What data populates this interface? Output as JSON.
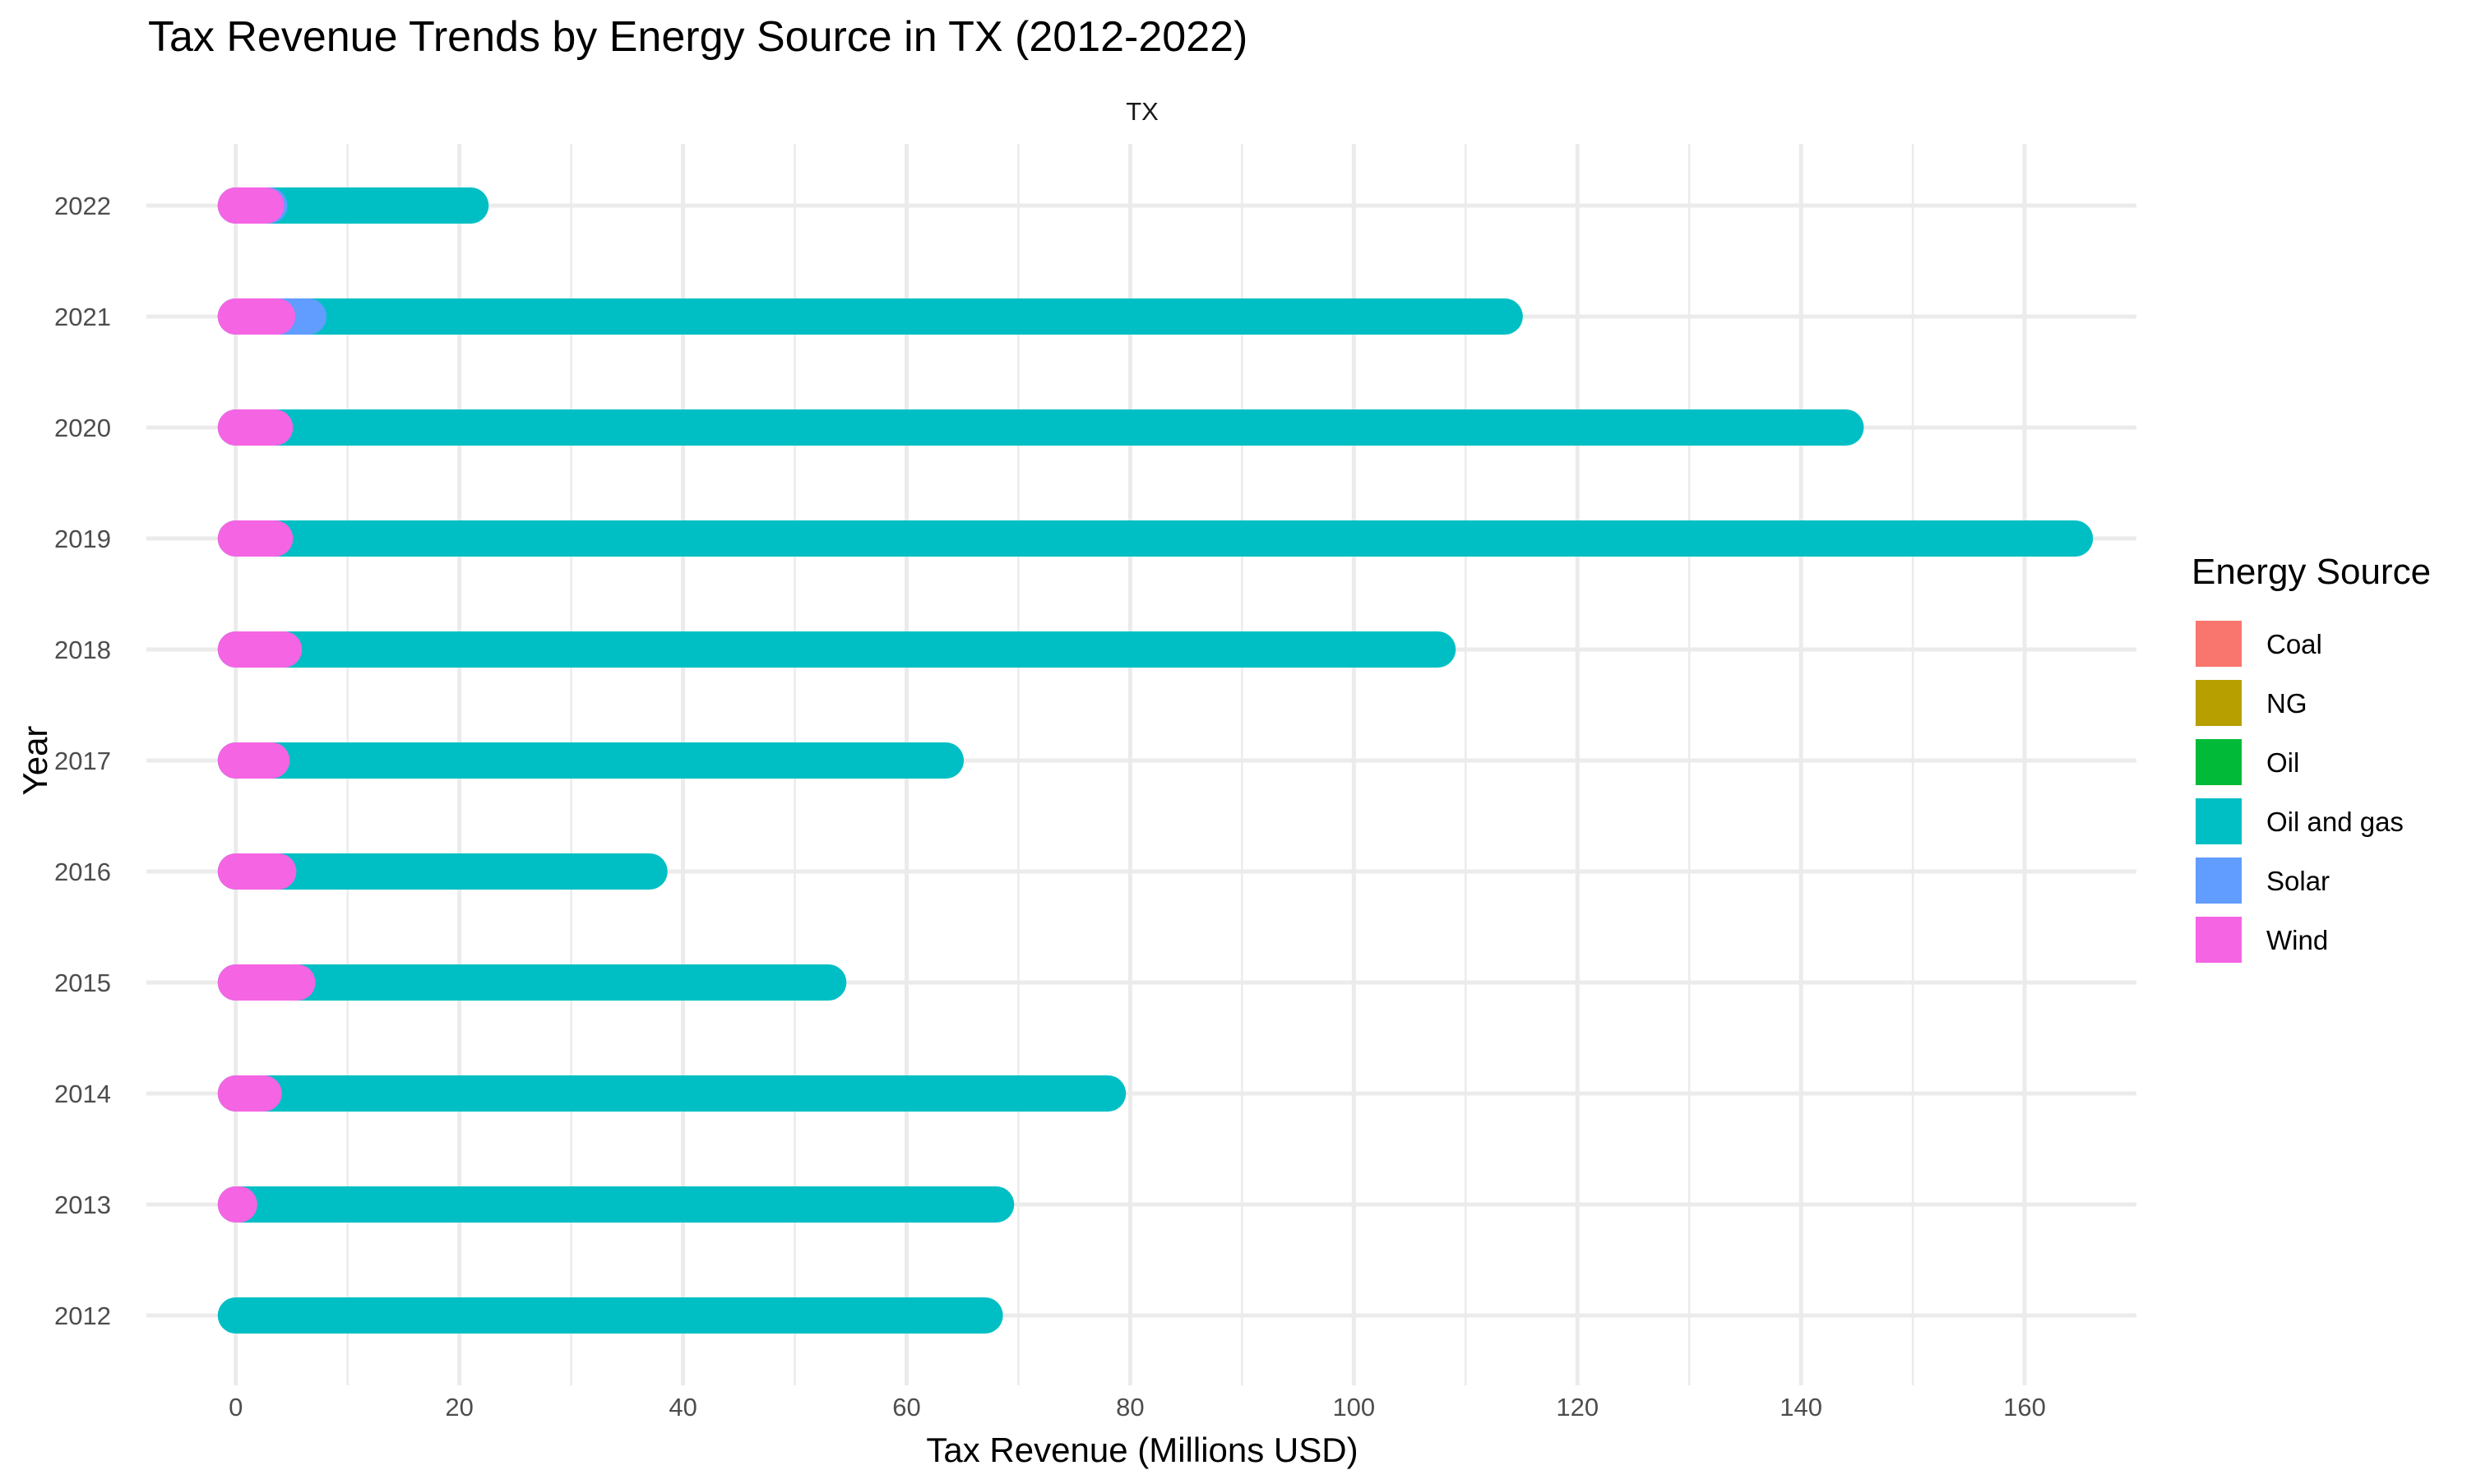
{
  "chart_data": {
    "type": "bar",
    "orientation": "horizontal",
    "stacked": false,
    "title": "Tax Revenue Trends by Energy Source in TX (2012-2022)",
    "facet": "TX",
    "xlabel": "Tax Revenue (Millions USD)",
    "ylabel": "Year",
    "xlim": [
      -8,
      170
    ],
    "xticks": [
      "0",
      "20",
      "40",
      "60",
      "80",
      "100",
      "120",
      "140",
      "160"
    ],
    "xtick_values": [
      0,
      20,
      40,
      60,
      80,
      100,
      120,
      140,
      160
    ],
    "categories": [
      "2012",
      "2013",
      "2014",
      "2015",
      "2016",
      "2017",
      "2018",
      "2019",
      "2020",
      "2021",
      "2022"
    ],
    "series": [
      {
        "name": "Coal",
        "color": "#F8766D",
        "values": [
          0,
          0,
          0,
          0,
          0,
          0,
          0,
          0,
          0,
          0,
          0
        ]
      },
      {
        "name": "NG",
        "color": "#B79F00",
        "values": [
          0,
          0,
          0,
          0,
          0,
          0,
          0,
          0,
          0,
          0,
          0
        ]
      },
      {
        "name": "Oil",
        "color": "#00BA38",
        "values": [
          0,
          0,
          0,
          0,
          0,
          0,
          0,
          0,
          0,
          0,
          0
        ]
      },
      {
        "name": "Oil and gas",
        "color": "#00BFC4",
        "values": [
          67,
          68,
          78,
          53,
          37,
          63.5,
          107.5,
          164.5,
          144,
          113.5,
          21
        ]
      },
      {
        "name": "Solar",
        "color": "#619CFF",
        "values": [
          0,
          0,
          0,
          0,
          0,
          0,
          0,
          0,
          0,
          6.5,
          3
        ]
      },
      {
        "name": "Wind",
        "color": "#F564E3",
        "values": [
          0,
          0.3,
          2.5,
          5.5,
          3.8,
          3.2,
          4.3,
          3.5,
          3.5,
          3.7,
          2.7
        ]
      }
    ],
    "legend": {
      "title": "Energy Source",
      "position": "right"
    },
    "grid": true
  }
}
